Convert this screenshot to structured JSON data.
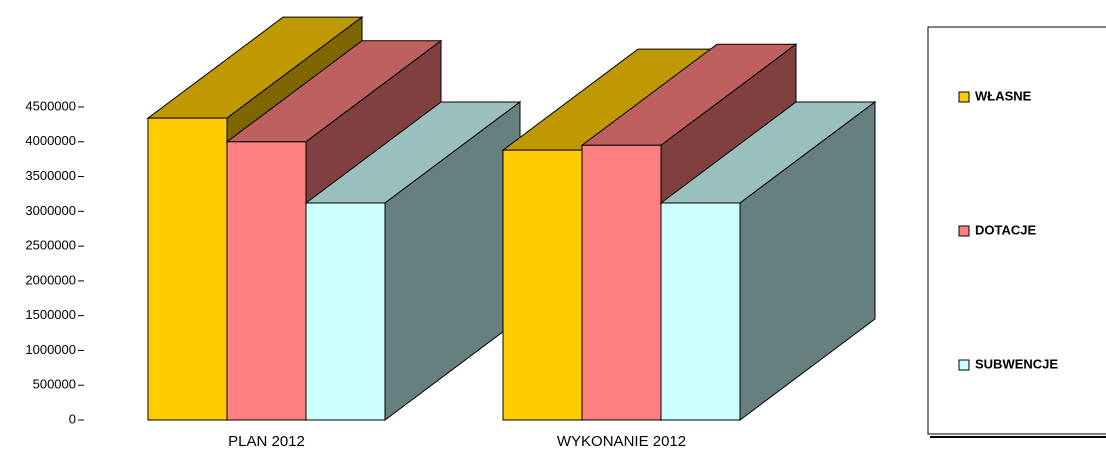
{
  "chart_data": {
    "type": "bar3d",
    "categories": [
      "PLAN 2012",
      "WYKONANIE 2012"
    ],
    "series": [
      {
        "name": "WŁASNE",
        "color": "#ffcc00",
        "values": [
          4340000,
          3880000
        ]
      },
      {
        "name": "DOTACJE",
        "color": "#ff8080",
        "values": [
          4000000,
          3950000
        ]
      },
      {
        "name": "SUBWENCJE",
        "color": "#ccffff",
        "values": [
          3120000,
          3120000
        ]
      }
    ],
    "ylim": [
      0,
      4500000
    ],
    "yticks": [
      0,
      500000,
      1000000,
      1500000,
      2000000,
      2500000,
      3000000,
      3500000,
      4000000,
      4500000
    ],
    "legend": "right"
  }
}
